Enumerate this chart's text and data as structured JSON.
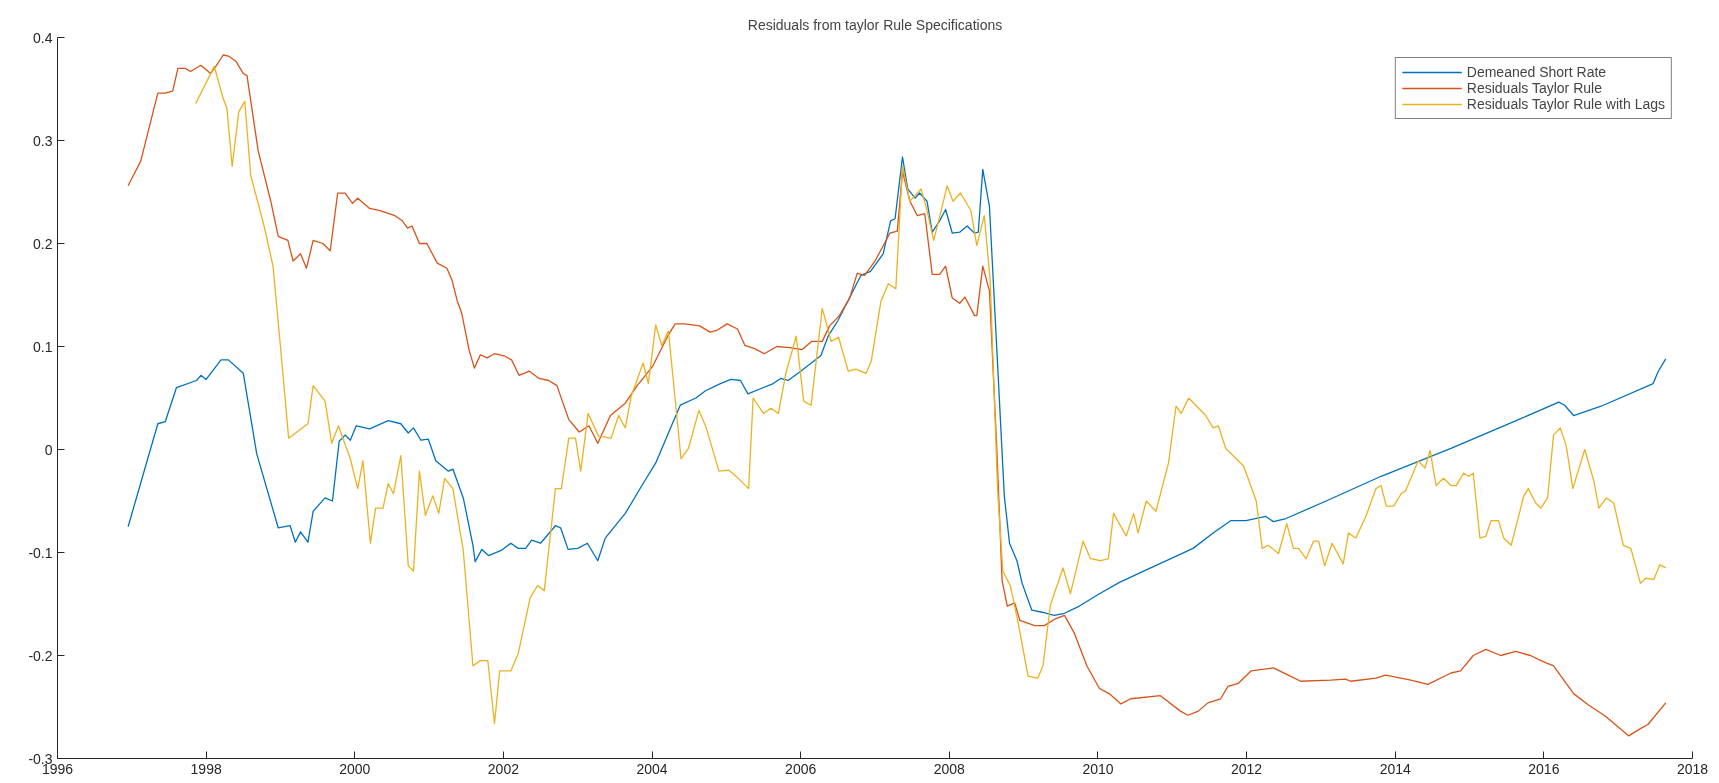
{
  "chart_data": {
    "type": "line",
    "title": "Residuals from taylor Rule Specifications",
    "xlim": [
      1996,
      2018
    ],
    "ylim": [
      -0.3,
      0.4
    ],
    "xticks": [
      1996,
      1998,
      2000,
      2002,
      2004,
      2006,
      2008,
      2010,
      2012,
      2014,
      2016,
      2018
    ],
    "yticks": [
      -0.3,
      -0.2,
      -0.1,
      0,
      0.1,
      0.2,
      0.3,
      0.4
    ],
    "grid": false,
    "legend": "top right",
    "line_style": "solid",
    "marker": "none",
    "series": [
      {
        "name": "Demeaned Short Rate",
        "color": "#0072bd",
        "x": [
          1996.95,
          1997.35,
          1997.45,
          1997.6,
          1997.87,
          1997.93,
          1998.0,
          1998.2,
          1998.3,
          1998.5,
          1998.68,
          1998.97,
          1999.13,
          1999.2,
          1999.27,
          1999.37,
          1999.44,
          1999.6,
          1999.7,
          1999.79,
          1999.87,
          1999.94,
          2000.02,
          2000.2,
          2000.45,
          2000.62,
          2000.72,
          2000.79,
          2000.89,
          2000.99,
          2001.09,
          2001.26,
          2001.32,
          2001.46,
          2001.59,
          2001.62,
          2001.71,
          2001.8,
          2001.97,
          2002.1,
          2002.2,
          2002.3,
          2002.38,
          2002.5,
          2002.7,
          2002.77,
          2002.87,
          2003.0,
          2003.13,
          2003.27,
          2003.37,
          2003.64,
          2003.88,
          2004.05,
          2004.25,
          2004.38,
          2004.59,
          2004.72,
          2004.92,
          2005.06,
          2005.19,
          2005.29,
          2005.46,
          2005.63,
          2005.73,
          2005.83,
          2006.0,
          2006.27,
          2006.37,
          2006.5,
          2006.67,
          2006.81,
          2006.94,
          2007.11,
          2007.21,
          2007.27,
          2007.37,
          2007.44,
          2007.54,
          2007.6,
          2007.7,
          2007.77,
          2007.87,
          2007.95,
          2008.04,
          2008.14,
          2008.24,
          2008.34,
          2008.39,
          2008.45,
          2008.54,
          2008.64,
          2008.74,
          2008.81,
          2008.91,
          2008.98,
          2009.11,
          2009.25,
          2009.41,
          2009.55,
          2009.75,
          2010.02,
          2010.29,
          2010.71,
          2011.28,
          2011.55,
          2011.79,
          2011.99,
          2012.26,
          2012.36,
          2012.53,
          2013.07,
          2013.81,
          2014.75,
          2015.69,
          2016.2,
          2016.28,
          2016.4,
          2016.77,
          2017.47,
          2017.54,
          2017.64
        ],
        "values": [
          -0.075,
          0.025,
          0.027,
          0.06,
          0.067,
          0.072,
          0.068,
          0.087,
          0.087,
          0.074,
          -0.004,
          -0.076,
          -0.074,
          -0.09,
          -0.08,
          -0.09,
          -0.06,
          -0.047,
          -0.05,
          0.008,
          0.014,
          0.009,
          0.023,
          0.02,
          0.028,
          0.025,
          0.016,
          0.021,
          0.009,
          0.01,
          -0.011,
          -0.021,
          -0.019,
          -0.047,
          -0.093,
          -0.109,
          -0.097,
          -0.103,
          -0.098,
          -0.091,
          -0.096,
          -0.096,
          -0.088,
          -0.091,
          -0.074,
          -0.076,
          -0.097,
          -0.096,
          -0.091,
          -0.108,
          -0.086,
          -0.062,
          -0.033,
          -0.013,
          0.021,
          0.043,
          0.05,
          0.057,
          0.064,
          0.068,
          0.067,
          0.054,
          0.059,
          0.064,
          0.069,
          0.067,
          0.076,
          0.091,
          0.11,
          0.125,
          0.149,
          0.169,
          0.173,
          0.19,
          0.222,
          0.224,
          0.284,
          0.253,
          0.244,
          0.249,
          0.241,
          0.211,
          0.222,
          0.233,
          0.21,
          0.211,
          0.217,
          0.21,
          0.211,
          0.272,
          0.236,
          0.096,
          -0.045,
          -0.091,
          -0.108,
          -0.13,
          -0.156,
          -0.158,
          -0.161,
          -0.159,
          -0.152,
          -0.14,
          -0.129,
          -0.115,
          -0.096,
          -0.081,
          -0.069,
          -0.069,
          -0.065,
          -0.07,
          -0.067,
          -0.05,
          -0.026,
          0.001,
          0.03,
          0.046,
          0.043,
          0.033,
          0.042,
          0.064,
          0.076,
          0.088
        ]
      },
      {
        "name": "Residuals Taylor Rule",
        "color": "#d95319",
        "x": [
          1996.95,
          1997.12,
          1997.35,
          1997.45,
          1997.55,
          1997.62,
          1997.72,
          1997.79,
          1997.93,
          1998.06,
          1998.13,
          1998.23,
          1998.3,
          1998.4,
          1998.5,
          1998.55,
          1998.7,
          1998.87,
          1998.97,
          1999.1,
          1999.17,
          1999.27,
          1999.35,
          1999.44,
          1999.57,
          1999.67,
          1999.77,
          1999.87,
          1999.97,
          2000.04,
          2000.2,
          2000.34,
          2000.54,
          2000.64,
          2000.71,
          2000.77,
          2000.87,
          2000.97,
          2001.11,
          2001.24,
          2001.31,
          2001.38,
          2001.44,
          2001.54,
          2001.61,
          2001.69,
          2001.78,
          2001.88,
          2002.01,
          2002.11,
          2002.21,
          2002.35,
          2002.48,
          2002.61,
          2002.72,
          2002.88,
          2003.02,
          2003.15,
          2003.27,
          2003.44,
          2003.64,
          2003.8,
          2004.01,
          2004.21,
          2004.31,
          2004.44,
          2004.64,
          2004.78,
          2004.88,
          2005.01,
          2005.15,
          2005.25,
          2005.38,
          2005.51,
          2005.68,
          2005.85,
          2006.02,
          2006.15,
          2006.29,
          2006.39,
          2006.52,
          2006.66,
          2006.76,
          2006.86,
          2007.0,
          2007.12,
          2007.2,
          2007.3,
          2007.37,
          2007.47,
          2007.57,
          2007.67,
          2007.77,
          2007.87,
          2007.95,
          2008.04,
          2008.14,
          2008.21,
          2008.34,
          2008.37,
          2008.45,
          2008.54,
          2008.64,
          2008.71,
          2008.78,
          2008.88,
          2008.95,
          2009.15,
          2009.28,
          2009.41,
          2009.55,
          2009.68,
          2009.85,
          2010.02,
          2010.15,
          2010.31,
          2010.44,
          2010.84,
          2011.11,
          2011.21,
          2011.35,
          2011.48,
          2011.65,
          2011.75,
          2011.89,
          2012.06,
          2012.36,
          2012.56,
          2012.73,
          2013.13,
          2013.33,
          2013.4,
          2013.74,
          2013.87,
          2014.21,
          2014.44,
          2014.75,
          2014.88,
          2015.05,
          2015.22,
          2015.42,
          2015.62,
          2015.82,
          2015.96,
          2016.13,
          2016.4,
          2016.6,
          2016.83,
          2017.14,
          2017.3,
          2017.4,
          2017.64
        ],
        "values": [
          0.256,
          0.28,
          0.346,
          0.346,
          0.348,
          0.37,
          0.37,
          0.367,
          0.373,
          0.365,
          0.372,
          0.383,
          0.382,
          0.377,
          0.365,
          0.363,
          0.29,
          0.241,
          0.207,
          0.203,
          0.183,
          0.19,
          0.176,
          0.203,
          0.2,
          0.193,
          0.249,
          0.249,
          0.239,
          0.244,
          0.234,
          0.232,
          0.227,
          0.222,
          0.215,
          0.217,
          0.2,
          0.2,
          0.181,
          0.176,
          0.164,
          0.144,
          0.132,
          0.096,
          0.079,
          0.092,
          0.089,
          0.093,
          0.091,
          0.087,
          0.072,
          0.076,
          0.069,
          0.067,
          0.062,
          0.029,
          0.017,
          0.023,
          0.006,
          0.033,
          0.045,
          0.062,
          0.081,
          0.11,
          0.122,
          0.122,
          0.12,
          0.114,
          0.116,
          0.122,
          0.117,
          0.101,
          0.098,
          0.093,
          0.1,
          0.099,
          0.097,
          0.105,
          0.105,
          0.12,
          0.13,
          0.147,
          0.171,
          0.169,
          0.183,
          0.199,
          0.21,
          0.212,
          0.27,
          0.241,
          0.227,
          0.229,
          0.17,
          0.17,
          0.178,
          0.147,
          0.142,
          0.148,
          0.13,
          0.13,
          0.178,
          0.154,
          -0.001,
          -0.127,
          -0.152,
          -0.149,
          -0.166,
          -0.171,
          -0.171,
          -0.165,
          -0.161,
          -0.178,
          -0.21,
          -0.232,
          -0.237,
          -0.247,
          -0.242,
          -0.239,
          -0.254,
          -0.258,
          -0.254,
          -0.246,
          -0.242,
          -0.23,
          -0.227,
          -0.215,
          -0.212,
          -0.219,
          -0.225,
          -0.224,
          -0.223,
          -0.225,
          -0.222,
          -0.219,
          -0.224,
          -0.228,
          -0.217,
          -0.215,
          -0.2,
          -0.194,
          -0.2,
          -0.196,
          -0.2,
          -0.205,
          -0.21,
          -0.237,
          -0.248,
          -0.259,
          -0.278,
          -0.271,
          -0.267,
          -0.246
        ]
      },
      {
        "name": "Residuals Taylor Rule with Lags",
        "color": "#edb120",
        "x": [
          1997.86,
          1998.11,
          1998.22,
          1998.28,
          1998.35,
          1998.44,
          1998.52,
          1998.6,
          1998.78,
          1998.9,
          1999.0,
          1999.11,
          1999.37,
          1999.44,
          1999.6,
          1999.69,
          1999.78,
          1999.94,
          2000.04,
          2000.11,
          2000.21,
          2000.28,
          2000.38,
          2000.45,
          2000.52,
          2000.62,
          2000.72,
          2000.79,
          2000.87,
          2000.95,
          2001.05,
          2001.13,
          2001.21,
          2001.32,
          2001.46,
          2001.59,
          2001.69,
          2001.79,
          2001.88,
          2001.95,
          2002.1,
          2002.2,
          2002.36,
          2002.46,
          2002.55,
          2002.7,
          2002.78,
          2002.88,
          2002.97,
          2003.04,
          2003.14,
          2003.28,
          2003.45,
          2003.55,
          2003.64,
          2003.72,
          2003.88,
          2003.95,
          2004.05,
          2004.13,
          2004.22,
          2004.39,
          2004.49,
          2004.63,
          2004.73,
          2004.9,
          2005.03,
          2005.16,
          2005.3,
          2005.36,
          2005.5,
          2005.6,
          2005.7,
          2005.8,
          2005.94,
          2006.04,
          2006.14,
          2006.29,
          2006.41,
          2006.51,
          2006.64,
          2006.74,
          2006.88,
          2006.95,
          2007.08,
          2007.18,
          2007.28,
          2007.37,
          2007.47,
          2007.62,
          2007.7,
          2007.79,
          2007.89,
          2007.97,
          2008.05,
          2008.15,
          2008.29,
          2008.37,
          2008.47,
          2008.55,
          2008.65,
          2008.72,
          2008.82,
          2008.92,
          2009.06,
          2009.19,
          2009.26,
          2009.36,
          2009.53,
          2009.63,
          2009.8,
          2009.9,
          2010.04,
          2010.14,
          2010.21,
          2010.38,
          2010.48,
          2010.54,
          2010.65,
          2010.78,
          2010.95,
          2011.05,
          2011.12,
          2011.22,
          2011.45,
          2011.55,
          2011.62,
          2011.72,
          2011.96,
          2012.13,
          2012.21,
          2012.29,
          2012.43,
          2012.54,
          2012.63,
          2012.7,
          2012.8,
          2012.9,
          2012.97,
          2013.05,
          2013.15,
          2013.3,
          2013.37,
          2013.47,
          2013.61,
          2013.74,
          2013.81,
          2013.88,
          2013.98,
          2014.08,
          2014.14,
          2014.31,
          2014.4,
          2014.47,
          2014.55,
          2014.65,
          2014.75,
          2014.82,
          2014.92,
          2014.99,
          2015.05,
          2015.14,
          2015.22,
          2015.29,
          2015.39,
          2015.46,
          2015.56,
          2015.73,
          2015.79,
          2015.89,
          2015.96,
          2016.05,
          2016.13,
          2016.22,
          2016.3,
          2016.39,
          2016.55,
          2016.67,
          2016.74,
          2016.84,
          2016.94,
          2017.07,
          2017.17,
          2017.3,
          2017.37,
          2017.48,
          2017.56,
          2017.64
        ],
        "values": [
          0.336,
          0.372,
          0.343,
          0.331,
          0.275,
          0.328,
          0.338,
          0.266,
          0.217,
          0.178,
          0.1,
          0.011,
          0.025,
          0.062,
          0.047,
          0.006,
          0.023,
          -0.009,
          -0.038,
          -0.011,
          -0.091,
          -0.057,
          -0.057,
          -0.033,
          -0.043,
          -0.006,
          -0.113,
          -0.118,
          -0.021,
          -0.064,
          -0.045,
          -0.062,
          -0.028,
          -0.038,
          -0.098,
          -0.21,
          -0.205,
          -0.205,
          -0.266,
          -0.215,
          -0.215,
          -0.198,
          -0.144,
          -0.132,
          -0.137,
          -0.038,
          -0.038,
          0.011,
          0.011,
          -0.021,
          0.035,
          0.013,
          0.011,
          0.033,
          0.021,
          0.052,
          0.084,
          0.064,
          0.121,
          0.101,
          0.115,
          -0.009,
          0.001,
          0.038,
          0.021,
          -0.021,
          -0.02,
          -0.028,
          -0.038,
          0.05,
          0.035,
          0.04,
          0.035,
          0.074,
          0.11,
          0.047,
          0.043,
          0.137,
          0.105,
          0.109,
          0.076,
          0.078,
          0.074,
          0.086,
          0.144,
          0.161,
          0.156,
          0.275,
          0.241,
          0.253,
          0.232,
          0.203,
          0.232,
          0.256,
          0.241,
          0.249,
          0.232,
          0.198,
          0.227,
          0.164,
          -0.04,
          -0.118,
          -0.132,
          -0.166,
          -0.22,
          -0.222,
          -0.21,
          -0.151,
          -0.115,
          -0.14,
          -0.089,
          -0.106,
          -0.108,
          -0.106,
          -0.062,
          -0.084,
          -0.062,
          -0.081,
          -0.05,
          -0.06,
          -0.013,
          0.042,
          0.035,
          0.05,
          0.033,
          0.021,
          0.023,
          0.001,
          -0.016,
          -0.05,
          -0.096,
          -0.093,
          -0.101,
          -0.072,
          -0.096,
          -0.096,
          -0.106,
          -0.089,
          -0.089,
          -0.113,
          -0.091,
          -0.111,
          -0.081,
          -0.086,
          -0.064,
          -0.038,
          -0.035,
          -0.055,
          -0.055,
          -0.043,
          -0.04,
          -0.011,
          -0.018,
          -0.001,
          -0.035,
          -0.028,
          -0.035,
          -0.035,
          -0.023,
          -0.026,
          -0.023,
          -0.086,
          -0.084,
          -0.069,
          -0.069,
          -0.086,
          -0.093,
          -0.045,
          -0.038,
          -0.052,
          -0.057,
          -0.047,
          0.014,
          0.021,
          0.004,
          -0.038,
          0.0,
          -0.03,
          -0.057,
          -0.047,
          -0.052,
          -0.093,
          -0.096,
          -0.13,
          -0.125,
          -0.126,
          -0.112,
          -0.115
        ]
      }
    ]
  }
}
